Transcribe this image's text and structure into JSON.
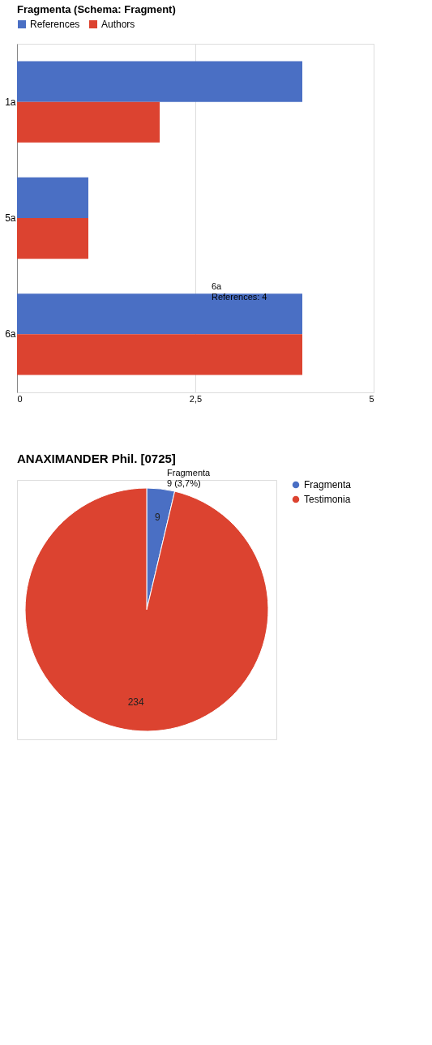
{
  "chart_data": [
    {
      "type": "pie",
      "title": "ANAXIMANDER Phil. [0725]",
      "categories": [
        "Fragmenta",
        "Testimonia"
      ],
      "values": [
        9,
        234
      ],
      "colors": [
        "#4a6fc4",
        "#dc4330"
      ],
      "data_labels": true,
      "legend": "right",
      "annotations": [
        "Fragmenta\n9 (3,7%)"
      ]
    },
    {
      "type": "bar",
      "orientation": "horizontal",
      "legend_title": "Fragmenta (Schema: Fragment)",
      "categories": [
        "1a",
        "5a",
        "6a"
      ],
      "series": [
        {
          "name": "References",
          "color": "#4a6fc4",
          "values": [
            4,
            1,
            4
          ]
        },
        {
          "name": "Authors",
          "color": "#dc4330",
          "values": [
            2,
            1,
            4
          ]
        }
      ],
      "xlim": [
        0,
        5
      ],
      "xticks": [
        0,
        {
          "value": 2.5,
          "label": "2,5"
        },
        5
      ],
      "grid": "x",
      "legend": "top",
      "annotations": [
        "6a\nReferences: 4"
      ]
    }
  ]
}
